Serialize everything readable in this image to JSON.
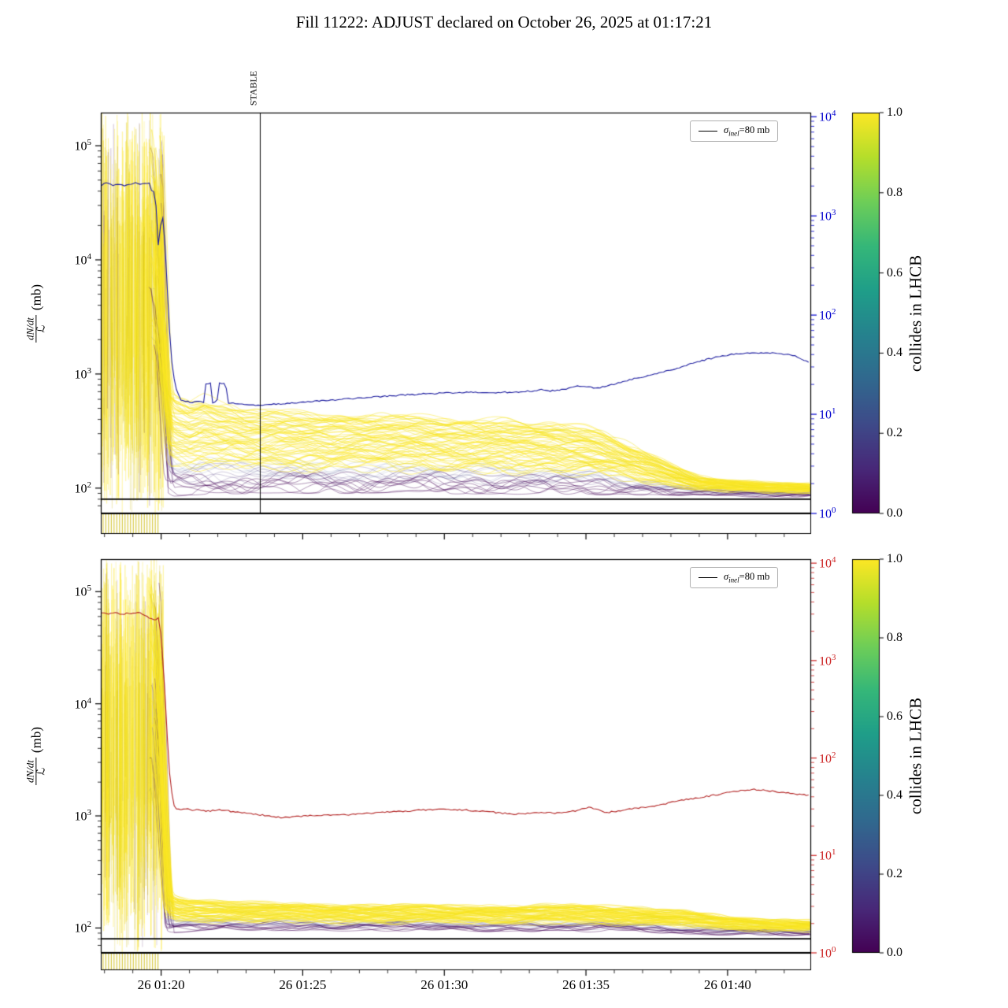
{
  "title": "Fill 11222: ADJUST declared on October 26, 2025 at 01:17:21",
  "figure": {
    "bg": "#ffffff",
    "xlim": [
      17.87,
      42.95
    ],
    "x_major": [
      20,
      25,
      30,
      35,
      40
    ],
    "x_major_labels": [
      "26 01:20",
      "26 01:25",
      "26 01:30",
      "26 01:35",
      "26 01:40"
    ],
    "x_minor_step": 1,
    "left_ylim": [
      60,
      195000
    ],
    "left_ticks_exp": [
      2,
      3,
      4,
      5
    ],
    "right_ylim": [
      1,
      11000
    ],
    "right_ticks_exp": [
      0,
      1,
      2,
      3,
      4
    ],
    "sigma_mb": 80,
    "legend": {
      "sigma_symbol": "σ",
      "sigma_sub": "inel",
      "sigma_rest": "=80 mb"
    },
    "ylabel": {
      "num": "dN/dt",
      "den": "ℒ",
      "unit": "(mb)"
    },
    "colorbar": {
      "label": "collides in LHCB",
      "ticks": [
        "0.0",
        "0.2",
        "0.4",
        "0.6",
        "0.8",
        "1.0"
      ],
      "colors": [
        "#440154",
        "#482878",
        "#3e4a89",
        "#31688e",
        "#26828e",
        "#1f9e89",
        "#35b779",
        "#6ece58",
        "#b5de2b",
        "#fde725"
      ]
    },
    "colors": {
      "yellow": "#fde725",
      "yellow2": "#f0e11c",
      "olive": "#cdbb10",
      "dark": "#440154",
      "purple2": "#472d7b",
      "blue3": "#3b528b",
      "top_line": "#1a1a9e",
      "top_axis": "#0000cd",
      "bottom_line": "#b22222",
      "bottom_axis": "#cc2222",
      "axis": "#000000"
    }
  },
  "chart_data": [
    {
      "type": "line",
      "name": "top",
      "stable": {
        "t": 23.5,
        "label": "STABLE"
      },
      "main_line": {
        "axis": "right",
        "points": [
          [
            17.9,
            2050
          ],
          [
            18.1,
            2150
          ],
          [
            18.3,
            2050
          ],
          [
            18.5,
            2120
          ],
          [
            18.7,
            2000
          ],
          [
            18.9,
            2100
          ],
          [
            19.1,
            2180
          ],
          [
            19.3,
            2080
          ],
          [
            19.5,
            2150
          ],
          [
            19.62,
            2100
          ],
          [
            19.7,
            1500
          ],
          [
            19.78,
            2050
          ],
          [
            19.9,
            500
          ],
          [
            19.98,
            800
          ],
          [
            20.08,
            1000
          ],
          [
            20.18,
            300
          ],
          [
            20.28,
            80
          ],
          [
            20.4,
            28
          ],
          [
            20.55,
            17
          ],
          [
            20.7,
            14
          ],
          [
            20.9,
            13.4
          ],
          [
            21.1,
            13.2
          ],
          [
            21.3,
            13.4
          ],
          [
            21.5,
            13.1
          ],
          [
            21.58,
            20.5
          ],
          [
            21.75,
            20.5
          ],
          [
            21.82,
            13.2
          ],
          [
            21.97,
            13.1
          ],
          [
            22.05,
            20.5
          ],
          [
            22.28,
            20.5
          ],
          [
            22.35,
            13.0
          ],
          [
            22.6,
            12.8
          ],
          [
            23.0,
            12.5
          ],
          [
            23.5,
            12.3
          ],
          [
            24.0,
            12.6
          ],
          [
            24.5,
            12.9
          ],
          [
            25,
            13.2
          ],
          [
            26,
            13.9
          ],
          [
            27,
            14.6
          ],
          [
            28,
            15.3
          ],
          [
            29,
            15.9
          ],
          [
            30,
            16.4
          ],
          [
            31,
            16.7
          ],
          [
            32,
            16.6
          ],
          [
            32.5,
            16.8
          ],
          [
            33,
            17.1
          ],
          [
            33.4,
            17.6
          ],
          [
            33.8,
            17.2
          ],
          [
            34.3,
            18.0
          ],
          [
            34.6,
            19.2
          ],
          [
            35,
            19.0
          ],
          [
            35.4,
            18.4
          ],
          [
            35.8,
            19.5
          ],
          [
            36.2,
            21
          ],
          [
            36.6,
            22.5
          ],
          [
            37,
            23.8
          ],
          [
            37.4,
            25.5
          ],
          [
            37.8,
            27
          ],
          [
            38.2,
            29
          ],
          [
            38.6,
            31.5
          ],
          [
            39,
            34
          ],
          [
            39.4,
            36.5
          ],
          [
            39.8,
            38.5
          ],
          [
            40.2,
            40.5
          ],
          [
            40.6,
            41.5
          ],
          [
            41,
            41.8
          ],
          [
            41.4,
            41.5
          ],
          [
            41.8,
            41
          ],
          [
            42.1,
            40
          ],
          [
            42.4,
            38.5
          ],
          [
            42.7,
            35
          ],
          [
            42.9,
            33.5
          ]
        ]
      },
      "band": {
        "t": [
          20.3,
          20.6,
          21,
          21.5,
          22,
          22.5,
          23,
          23.5,
          24,
          25,
          26,
          27,
          28,
          29,
          30,
          31,
          32,
          33,
          34,
          34.5,
          35,
          35.5,
          36,
          36.5,
          37,
          37.5,
          38,
          38.5,
          39,
          40,
          41,
          42,
          42.9
        ],
        "upper": [
          700,
          620,
          560,
          600,
          540,
          520,
          470,
          450,
          460,
          450,
          440,
          430,
          420,
          410,
          400,
          395,
          385,
          370,
          350,
          340,
          330,
          310,
          280,
          240,
          210,
          185,
          160,
          140,
          125,
          115,
          112,
          110,
          108
        ],
        "core": [
          86,
          88,
          90,
          90,
          91,
          92,
          92,
          92,
          93,
          93,
          93,
          93,
          93,
          93,
          92,
          92,
          92,
          91,
          91,
          91,
          90,
          90,
          90,
          89,
          89,
          89,
          88,
          88,
          87,
          87,
          86,
          86,
          86
        ]
      },
      "chaos": {
        "t_start": 17.87,
        "t_end": 20.0,
        "v_min": 60,
        "v_max": 195000
      }
    },
    {
      "type": "line",
      "name": "bottom",
      "main_line": {
        "axis": "right",
        "points": [
          [
            17.9,
            3100
          ],
          [
            18.15,
            3000
          ],
          [
            18.4,
            3150
          ],
          [
            18.6,
            2950
          ],
          [
            18.85,
            3080
          ],
          [
            19.05,
            3020
          ],
          [
            19.25,
            3120
          ],
          [
            19.45,
            2900
          ],
          [
            19.6,
            2700
          ],
          [
            19.75,
            2600
          ],
          [
            19.9,
            2750
          ],
          [
            20.0,
            1800
          ],
          [
            20.1,
            700
          ],
          [
            20.2,
            200
          ],
          [
            20.3,
            70
          ],
          [
            20.42,
            34
          ],
          [
            20.55,
            30
          ],
          [
            20.7,
            29.5
          ],
          [
            20.9,
            30
          ],
          [
            21.1,
            29
          ],
          [
            21.3,
            30
          ],
          [
            21.6,
            28.5
          ],
          [
            21.9,
            29
          ],
          [
            22.2,
            29.5
          ],
          [
            22.5,
            28
          ],
          [
            22.8,
            27.5
          ],
          [
            23.1,
            27
          ],
          [
            23.4,
            26.5
          ],
          [
            23.7,
            25.5
          ],
          [
            24.0,
            25
          ],
          [
            24.3,
            24.5
          ],
          [
            24.7,
            25
          ],
          [
            25.1,
            25.5
          ],
          [
            25.5,
            25.8
          ],
          [
            26,
            26.2
          ],
          [
            26.5,
            26
          ],
          [
            27,
            26.8
          ],
          [
            27.5,
            27.3
          ],
          [
            28,
            27.8
          ],
          [
            28.5,
            28.3
          ],
          [
            29,
            29
          ],
          [
            29.5,
            29.6
          ],
          [
            30,
            30
          ],
          [
            30.4,
            29.6
          ],
          [
            30.8,
            29.2
          ],
          [
            31.2,
            28.6
          ],
          [
            31.6,
            28
          ],
          [
            32,
            27.2
          ],
          [
            32.4,
            26.6
          ],
          [
            32.8,
            26.8
          ],
          [
            33.2,
            27.2
          ],
          [
            33.6,
            27.6
          ],
          [
            34,
            27.2
          ],
          [
            34.4,
            27.8
          ],
          [
            34.8,
            29.5
          ],
          [
            35.1,
            31
          ],
          [
            35.4,
            30
          ],
          [
            35.7,
            27.5
          ],
          [
            36,
            28.2
          ],
          [
            36.4,
            29.5
          ],
          [
            36.8,
            30.5
          ],
          [
            37.2,
            31.5
          ],
          [
            37.6,
            33
          ],
          [
            38,
            35
          ],
          [
            38.4,
            36.8
          ],
          [
            38.8,
            38.5
          ],
          [
            39.2,
            40
          ],
          [
            39.6,
            42
          ],
          [
            40,
            44
          ],
          [
            40.3,
            45.5
          ],
          [
            40.7,
            47
          ],
          [
            41,
            47.5
          ],
          [
            41.3,
            47
          ],
          [
            41.6,
            45.5
          ],
          [
            41.9,
            44.5
          ],
          [
            42.2,
            43.5
          ],
          [
            42.5,
            42.5
          ],
          [
            42.9,
            41.5
          ]
        ]
      },
      "band": {
        "t": [
          20.3,
          20.6,
          21,
          21.5,
          22,
          22.5,
          23,
          23.5,
          24,
          25,
          26,
          27,
          28,
          29,
          30,
          31,
          32,
          33,
          34,
          34.5,
          35,
          35.5,
          36,
          36.5,
          37,
          37.5,
          38,
          38.5,
          39,
          40,
          41,
          42,
          42.9
        ],
        "upper": [
          200,
          185,
          175,
          172,
          170,
          168,
          166,
          165,
          164,
          162,
          160,
          160,
          158,
          157,
          156,
          155,
          155,
          156,
          158,
          160,
          158,
          155,
          152,
          150,
          148,
          145,
          142,
          140,
          135,
          125,
          120,
          116,
          114
        ],
        "core": [
          92,
          94,
          96,
          97,
          97,
          98,
          98,
          98,
          98,
          98,
          97,
          97,
          97,
          97,
          96,
          96,
          96,
          96,
          96,
          96,
          95,
          95,
          95,
          94,
          93,
          93,
          92,
          91,
          90,
          89,
          88,
          88,
          88
        ]
      },
      "chaos": {
        "t_start": 17.87,
        "t_end": 20.0,
        "v_min": 60,
        "v_max": 195000
      }
    }
  ]
}
